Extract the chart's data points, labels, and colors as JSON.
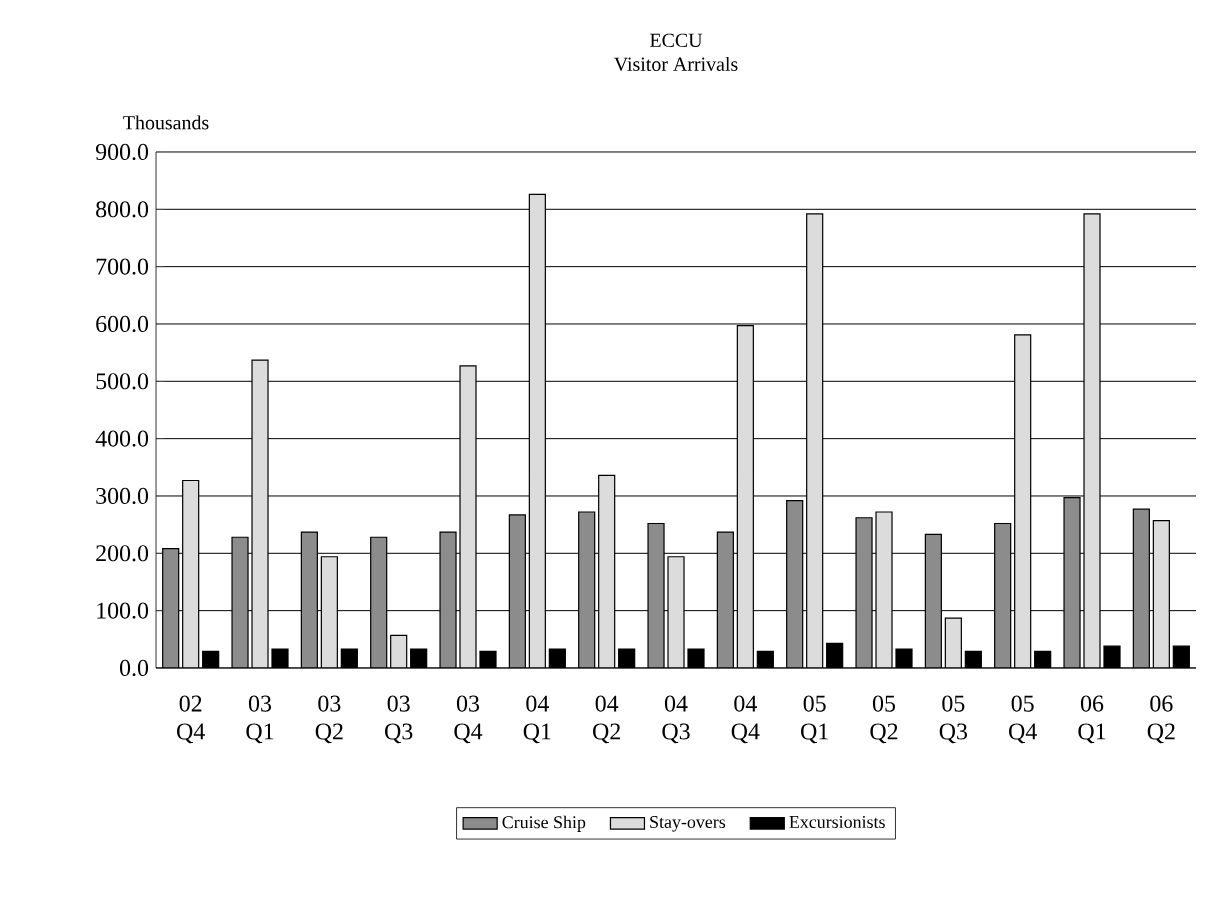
{
  "chart_data": {
    "type": "bar",
    "title": "ECCU",
    "subtitle": "Visitor Arrivals",
    "ylabel": "Thousands",
    "categories": [
      "02 Q4",
      "03 Q1",
      "03 Q2",
      "03 Q3",
      "03 Q4",
      "04 Q1",
      "04 Q2",
      "04 Q3",
      "04 Q4",
      "05 Q1",
      "05 Q2",
      "05 Q3",
      "05 Q4",
      "06 Q1",
      "06 Q2"
    ],
    "series": [
      {
        "name": "Cruise Ship",
        "color": "#8c8c8c",
        "values": [
          208,
          228,
          237,
          228,
          237,
          267,
          272,
          252,
          237,
          292,
          262,
          233,
          252,
          297,
          277
        ]
      },
      {
        "name": "Stay-overs",
        "color": "#dcdcdc",
        "values": [
          327,
          537,
          194,
          57,
          527,
          826,
          336,
          194,
          597,
          792,
          272,
          87,
          581,
          792,
          257
        ]
      },
      {
        "name": "Excursionists",
        "color": "#000000",
        "values": [
          29,
          33,
          33,
          33,
          29,
          33,
          33,
          33,
          29,
          43,
          33,
          29,
          29,
          38,
          38
        ]
      }
    ],
    "ylim": [
      0,
      900
    ],
    "yticks": [
      {
        "value": 0,
        "label": "0.0"
      },
      {
        "value": 100,
        "label": "100.0"
      },
      {
        "value": 200,
        "label": "200.0"
      },
      {
        "value": 300,
        "label": "300.0"
      },
      {
        "value": 400,
        "label": "400.0"
      },
      {
        "value": 500,
        "label": "500.0"
      },
      {
        "value": 600,
        "label": "600.0"
      },
      {
        "value": 700,
        "label": "700.0"
      },
      {
        "value": 800,
        "label": "800.0"
      },
      {
        "value": 900,
        "label": "900.0"
      }
    ],
    "grid": "y",
    "legend": "bottom"
  }
}
